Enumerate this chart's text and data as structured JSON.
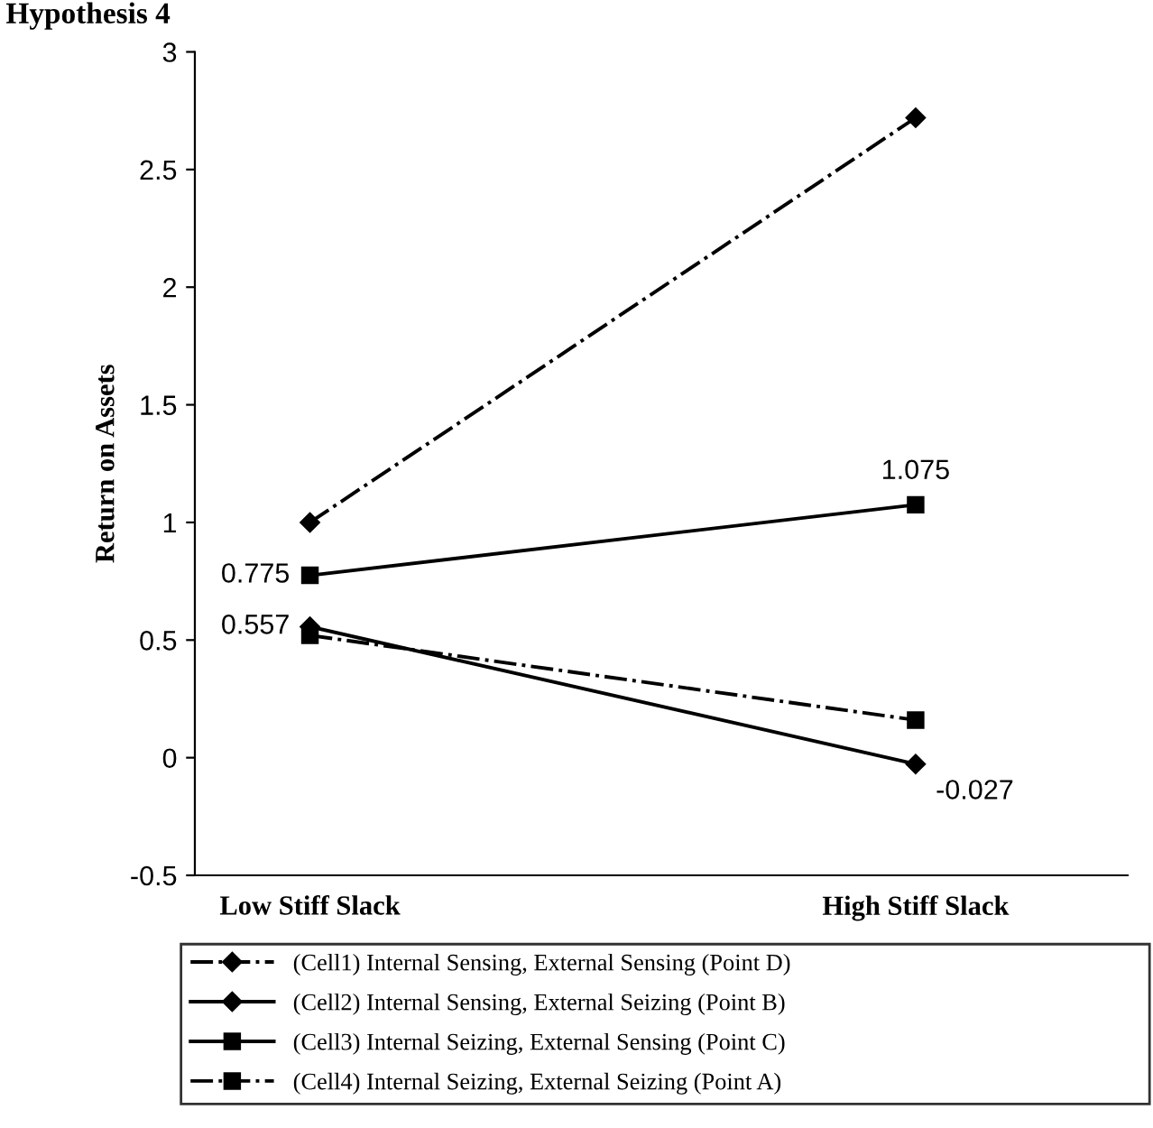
{
  "chart_data": {
    "type": "line",
    "title": "Hypothesis 4",
    "ylabel": "Return on Assets",
    "categories": [
      "Low Stiff Slack",
      "High Stiff Slack"
    ],
    "ylim": [
      -0.5,
      3
    ],
    "yticks": [
      -0.5,
      0,
      0.5,
      1,
      1.5,
      2,
      2.5,
      3
    ],
    "grid": false,
    "legend": "bottom",
    "series": [
      {
        "name": "(Cell1) Internal Sensing, External Sensing (Point D)",
        "color": "#000000",
        "values": [
          1.0,
          2.72
        ],
        "marker": "diamond",
        "line_style": "dashdot"
      },
      {
        "name": "(Cell2) Internal Sensing, External Seizing (Point B)",
        "color": "#000000",
        "values": [
          0.557,
          -0.027
        ],
        "marker": "diamond",
        "line_style": "solid",
        "value_labels": [
          "0.557",
          "-0.027"
        ]
      },
      {
        "name": "(Cell3) Internal Seizing, External Sensing (Point C)",
        "color": "#000000",
        "values": [
          0.775,
          1.075
        ],
        "marker": "square",
        "line_style": "solid",
        "value_labels": [
          "0.775",
          "1.075"
        ]
      },
      {
        "name": "(Cell4) Internal Seizing, External Seizing (Point A)",
        "color": "#000000",
        "values": [
          0.52,
          0.16
        ],
        "marker": "square",
        "line_style": "dashdot"
      }
    ]
  }
}
